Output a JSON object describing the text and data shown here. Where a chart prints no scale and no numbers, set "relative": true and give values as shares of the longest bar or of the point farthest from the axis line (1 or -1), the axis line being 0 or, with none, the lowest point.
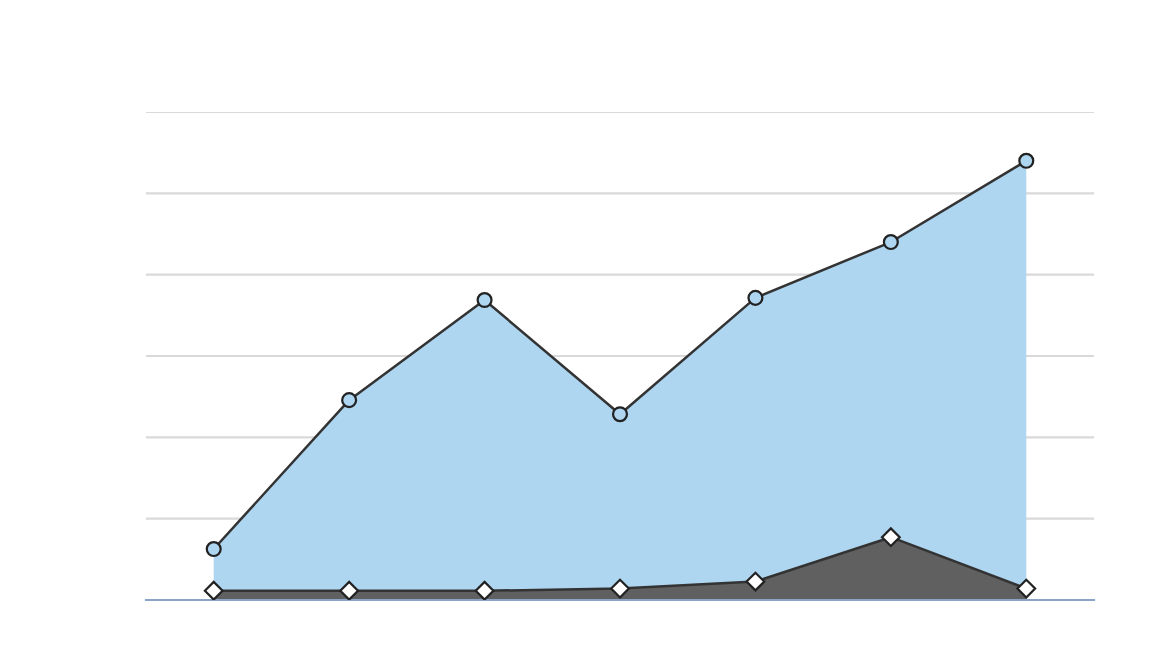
{
  "chart_data": {
    "type": "area",
    "relative": true,
    "categories": [
      null,
      null,
      null,
      null,
      null,
      null,
      null
    ],
    "series": [
      {
        "color": "#aed6f1",
        "marker": "circle",
        "values": [
          0.116,
          0.455,
          0.683,
          0.423,
          0.688,
          0.815,
          1
        ]
      },
      {
        "color": "#606060",
        "marker": "diamond",
        "values": [
          0.021,
          0.021,
          0.021,
          0.026,
          0.042,
          0.143,
          0.026
        ]
      }
    ],
    "grid": "y",
    "legend": false
  }
}
